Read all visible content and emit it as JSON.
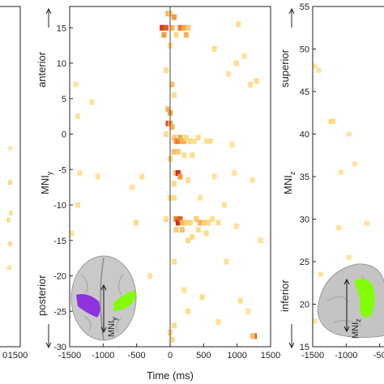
{
  "chart_data": [
    {
      "type": "heatmap",
      "panel": "left-partial",
      "x_ticks": [
        "0",
        "1500"
      ],
      "y_ticks": [],
      "cells": [
        {
          "t": 10,
          "y": 0.62,
          "v": 0.3
        },
        {
          "t": 12,
          "y": 0.51,
          "v": 0.35
        },
        {
          "t": 13,
          "y": 0.6,
          "v": 0.25
        },
        {
          "t": 12,
          "y": 0.69,
          "v": 0.3
        },
        {
          "t": 11,
          "y": 0.76,
          "v": 0.25
        },
        {
          "t": 12,
          "y": 0.41,
          "v": 0.2
        }
      ]
    },
    {
      "type": "heatmap",
      "panel": "middle",
      "xlabel": "Time (ms)",
      "ylabel_main": "MNI",
      "ylabel_sub": "y",
      "anterior_label": "anterior",
      "posterior_label": "posterior",
      "inset_axis_main": "MNI",
      "inset_axis_sub": "y",
      "xlim": [
        -1500,
        1500
      ],
      "ylim": [
        -30,
        18
      ],
      "y_inverted": true,
      "x_ticks": [
        "-1500",
        "-1000",
        "-500",
        "0",
        "500",
        "1000",
        "1500"
      ],
      "y_ticks": [
        "15",
        "10",
        "5",
        "0",
        "-5",
        "-10",
        "-15",
        "-20",
        "-25",
        "-30"
      ],
      "cells": [
        {
          "t": -30,
          "y": 17,
          "v": 0.5
        },
        {
          "t": 0,
          "y": 17,
          "v": 0.4
        },
        {
          "t": 60,
          "y": 16.5,
          "v": 0.6
        },
        {
          "t": -120,
          "y": 15,
          "v": 0.9
        },
        {
          "t": -60,
          "y": 15,
          "v": 0.8
        },
        {
          "t": 30,
          "y": 15,
          "v": 0.5
        },
        {
          "t": 150,
          "y": 15,
          "v": 0.7
        },
        {
          "t": 210,
          "y": 15,
          "v": 0.55
        },
        {
          "t": 270,
          "y": 15,
          "v": 0.4
        },
        {
          "t": -90,
          "y": 14,
          "v": 0.6
        },
        {
          "t": 90,
          "y": 14,
          "v": 0.35
        },
        {
          "t": 240,
          "y": 14,
          "v": 0.5
        },
        {
          "t": 0,
          "y": 12.5,
          "v": 0.3
        },
        {
          "t": 1020,
          "y": 15.5,
          "v": 0.3
        },
        {
          "t": 660,
          "y": 12,
          "v": 0.3
        },
        {
          "t": 990,
          "y": 10,
          "v": 0.3
        },
        {
          "t": 1110,
          "y": 11,
          "v": 0.25
        },
        {
          "t": 870,
          "y": 8.5,
          "v": 0.25
        },
        {
          "t": 1200,
          "y": 7,
          "v": 0.3
        },
        {
          "t": 1290,
          "y": 7.5,
          "v": 0.3
        },
        {
          "t": -60,
          "y": 9,
          "v": 0.3
        },
        {
          "t": 30,
          "y": 7,
          "v": 0.45
        },
        {
          "t": 60,
          "y": 5.5,
          "v": 0.3
        },
        {
          "t": -1410,
          "y": 7,
          "v": 0.25
        },
        {
          "t": -1170,
          "y": 4.5,
          "v": 0.25
        },
        {
          "t": -1380,
          "y": 2.5,
          "v": 0.25
        },
        {
          "t": -30,
          "y": 3.5,
          "v": 0.5
        },
        {
          "t": 0,
          "y": 3,
          "v": 0.55
        },
        {
          "t": -30,
          "y": 1.5,
          "v": 0.85
        },
        {
          "t": 0,
          "y": 1.5,
          "v": 0.6
        },
        {
          "t": 30,
          "y": 1,
          "v": 0.5
        },
        {
          "t": -60,
          "y": 0,
          "v": 0.3
        },
        {
          "t": 60,
          "y": -0.5,
          "v": 0.4
        },
        {
          "t": 90,
          "y": -1,
          "v": 0.6
        },
        {
          "t": 120,
          "y": -1,
          "v": 0.7
        },
        {
          "t": 150,
          "y": -0.5,
          "v": 0.55
        },
        {
          "t": 180,
          "y": -1,
          "v": 0.5
        },
        {
          "t": 210,
          "y": -1,
          "v": 0.5
        },
        {
          "t": 240,
          "y": -0.5,
          "v": 0.35
        },
        {
          "t": 300,
          "y": -1,
          "v": 0.35
        },
        {
          "t": 360,
          "y": -1,
          "v": 0.3
        },
        {
          "t": 420,
          "y": -0.5,
          "v": 0.3
        },
        {
          "t": 540,
          "y": -1,
          "v": 0.25
        },
        {
          "t": 600,
          "y": -1,
          "v": 0.3
        },
        {
          "t": 60,
          "y": -2.5,
          "v": 0.45
        },
        {
          "t": 120,
          "y": -2.5,
          "v": 0.4
        },
        {
          "t": 210,
          "y": -3,
          "v": 0.3
        },
        {
          "t": 0,
          "y": -3.5,
          "v": 0.35
        },
        {
          "t": 330,
          "y": -3,
          "v": 0.3
        },
        {
          "t": 930,
          "y": -1.5,
          "v": 0.25
        },
        {
          "t": 90,
          "y": -5.5,
          "v": 0.5
        },
        {
          "t": 120,
          "y": -5.5,
          "v": 0.95
        },
        {
          "t": 150,
          "y": -6,
          "v": 0.6
        },
        {
          "t": 60,
          "y": -7,
          "v": 0.35
        },
        {
          "t": 270,
          "y": -6.5,
          "v": 0.3
        },
        {
          "t": -1350,
          "y": -5.5,
          "v": 0.25
        },
        {
          "t": -1080,
          "y": -6,
          "v": 0.25
        },
        {
          "t": -420,
          "y": -6,
          "v": 0.25
        },
        {
          "t": -570,
          "y": -7.5,
          "v": 0.25
        },
        {
          "t": 660,
          "y": -6,
          "v": 0.25
        },
        {
          "t": 960,
          "y": -5.5,
          "v": 0.25
        },
        {
          "t": 1230,
          "y": -6.5,
          "v": 0.25
        },
        {
          "t": 0,
          "y": -9,
          "v": 0.3
        },
        {
          "t": 60,
          "y": -9,
          "v": 0.3
        },
        {
          "t": -1380,
          "y": -10,
          "v": 0.25
        },
        {
          "t": 450,
          "y": -9,
          "v": 0.25
        },
        {
          "t": 810,
          "y": -10,
          "v": 0.25
        },
        {
          "t": -510,
          "y": -12.5,
          "v": 0.3
        },
        {
          "t": -60,
          "y": -12,
          "v": 0.3
        },
        {
          "t": 90,
          "y": -12,
          "v": 0.7
        },
        {
          "t": 120,
          "y": -12.5,
          "v": 0.95
        },
        {
          "t": 150,
          "y": -12,
          "v": 0.8
        },
        {
          "t": 180,
          "y": -12.5,
          "v": 0.5
        },
        {
          "t": 240,
          "y": -12.5,
          "v": 0.4
        },
        {
          "t": 300,
          "y": -12.5,
          "v": 0.35
        },
        {
          "t": 390,
          "y": -12,
          "v": 0.4
        },
        {
          "t": 450,
          "y": -12.5,
          "v": 0.5
        },
        {
          "t": 510,
          "y": -12.5,
          "v": 0.4
        },
        {
          "t": 570,
          "y": -12.5,
          "v": 0.35
        },
        {
          "t": 630,
          "y": -12,
          "v": 0.3
        },
        {
          "t": 720,
          "y": -12.5,
          "v": 0.3
        },
        {
          "t": 90,
          "y": -13.5,
          "v": 0.4
        },
        {
          "t": 180,
          "y": -13.5,
          "v": 0.45
        },
        {
          "t": 420,
          "y": -13.5,
          "v": 0.3
        },
        {
          "t": 540,
          "y": -14,
          "v": 0.3
        },
        {
          "t": 270,
          "y": -15,
          "v": 0.35
        },
        {
          "t": 330,
          "y": -14.5,
          "v": 0.3
        },
        {
          "t": 1350,
          "y": -15,
          "v": 0.25
        },
        {
          "t": -1470,
          "y": -14,
          "v": 0.25
        },
        {
          "t": 990,
          "y": -13,
          "v": 0.25
        },
        {
          "t": 60,
          "y": -18,
          "v": 0.3
        },
        {
          "t": 840,
          "y": -18,
          "v": 0.25
        },
        {
          "t": -300,
          "y": -20,
          "v": 0.25
        },
        {
          "t": 210,
          "y": -22,
          "v": 0.25
        },
        {
          "t": 480,
          "y": -23,
          "v": 0.3
        },
        {
          "t": 1050,
          "y": -23.5,
          "v": 0.3
        },
        {
          "t": 270,
          "y": -25,
          "v": 0.3
        },
        {
          "t": 1170,
          "y": -25,
          "v": 0.25
        },
        {
          "t": 720,
          "y": -26.5,
          "v": 0.25
        },
        {
          "t": 60,
          "y": -27,
          "v": 0.3
        },
        {
          "t": 0,
          "y": -28,
          "v": 0.3
        },
        {
          "t": 30,
          "y": -29,
          "v": 0.35
        },
        {
          "t": 1260,
          "y": -28.5,
          "v": 0.8
        },
        {
          "t": 1230,
          "y": -28.5,
          "v": 0.45
        },
        {
          "t": -900,
          "y": -24.5,
          "v": 0.25
        },
        {
          "t": -1200,
          "y": -27.5,
          "v": 0.25
        }
      ]
    },
    {
      "type": "heatmap",
      "panel": "right-partial",
      "ylabel_main": "MNI",
      "ylabel_sub": "z",
      "superior_label": "superior",
      "inferior_label": "inferior",
      "inset_axis_main": "MNI",
      "inset_axis_sub": "z",
      "ylim": [
        15,
        55
      ],
      "x_ticks": [
        "-1500",
        "-1000",
        "-50"
      ],
      "y_ticks": [
        "55",
        "50",
        "45",
        "40",
        "35",
        "30",
        "25",
        "20",
        "15"
      ],
      "cells": [
        {
          "t": -1470,
          "y": 48,
          "v": 0.25
        },
        {
          "t": -1410,
          "y": 47.5,
          "v": 0.25
        },
        {
          "t": -1230,
          "y": 41.5,
          "v": 0.35
        },
        {
          "t": -1200,
          "y": 41.5,
          "v": 0.35
        },
        {
          "t": -960,
          "y": 40,
          "v": 0.25
        },
        {
          "t": -1080,
          "y": 35.5,
          "v": 0.25
        },
        {
          "t": -870,
          "y": 36.5,
          "v": 0.25
        },
        {
          "t": -1110,
          "y": 29,
          "v": 0.25
        },
        {
          "t": -690,
          "y": 29.5,
          "v": 0.25
        },
        {
          "t": -1380,
          "y": 23.5,
          "v": 0.25
        },
        {
          "t": -960,
          "y": 25.5,
          "v": 0.25
        },
        {
          "t": -1470,
          "y": 18,
          "v": 0.25
        }
      ]
    }
  ]
}
